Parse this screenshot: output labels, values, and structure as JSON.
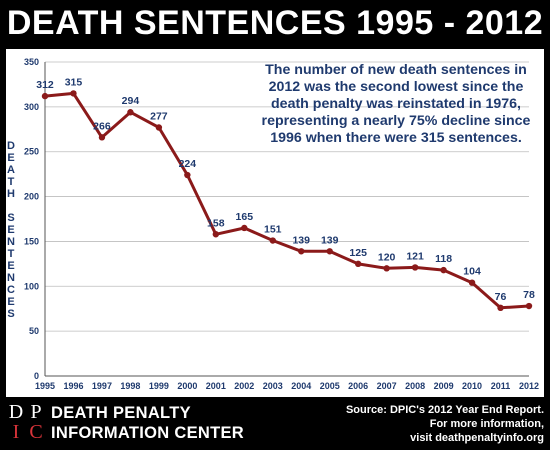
{
  "header": {
    "title": "DEATH SENTENCES 1995 - 2012"
  },
  "annotation": {
    "lines": [
      "The number of new death sentences in",
      "2012 was the second lowest since the",
      "death penalty was reinstated in 1976,",
      "representing a nearly 75% decline since",
      "1996 when there were 315 sentences."
    ]
  },
  "footer": {
    "logo_letters": [
      "D",
      "P",
      "I",
      "C"
    ],
    "org_lines": [
      "DEATH PENALTY",
      "INFORMATION CENTER"
    ],
    "source_lines": [
      "Source: DPIC's 2012 Year End Report.",
      "For more information,",
      "visit deathpenaltyinfo.org"
    ]
  },
  "colors": {
    "line": "#8b1a1a",
    "text_blue": "#1f3a6e",
    "logo_red": "#d8343a",
    "background": "#000000",
    "panel": "#ffffff"
  },
  "chart_data": {
    "type": "line",
    "title": "DEATH SENTENCES 1995 - 2012",
    "xlabel": "",
    "ylabel": "DEATH SENTENCES",
    "x": [
      1995,
      1996,
      1997,
      1998,
      1999,
      2000,
      2001,
      2002,
      2003,
      2004,
      2005,
      2006,
      2007,
      2008,
      2009,
      2010,
      2011,
      2012
    ],
    "x_tick_labels": [
      "1995",
      "1996",
      "1997",
      "1998",
      "1999",
      "2000",
      "2001",
      "2002",
      "2003",
      "2004",
      "2005",
      "2006",
      "2007",
      "2008",
      "2009",
      "2010",
      "2011",
      "2012"
    ],
    "values": [
      312,
      315,
      266,
      294,
      277,
      224,
      158,
      165,
      151,
      139,
      139,
      125,
      120,
      121,
      118,
      104,
      76,
      78
    ],
    "data_labels": [
      "312",
      "315",
      "266",
      "294",
      "277",
      "224",
      "158",
      "165",
      "151",
      "139",
      "139",
      "125",
      "120",
      "121",
      "118",
      "104",
      "76",
      "78"
    ],
    "ylim": [
      0,
      350
    ],
    "y_ticks": [
      0,
      50,
      100,
      150,
      200,
      250,
      300,
      350
    ],
    "y_tick_labels": [
      "0",
      "50",
      "100",
      "150",
      "200",
      "250",
      "300",
      "350"
    ],
    "grid": true,
    "legend": "none"
  }
}
